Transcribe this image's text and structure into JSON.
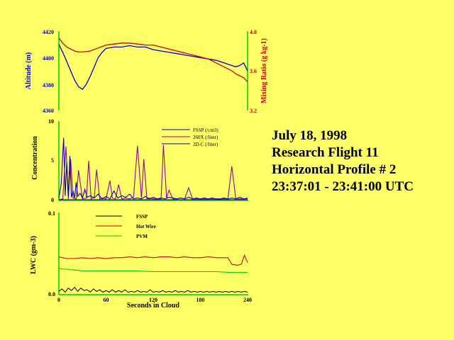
{
  "info": {
    "date": "July 18, 1998",
    "flight": "Research Flight 11",
    "profile": "Horizontal Profile # 2",
    "time": "23:37:01 - 23:41:00 UTC"
  },
  "colors": {
    "background": "#ffff66",
    "blue": "#0000cc",
    "red": "#cc0000",
    "purple": "#990099",
    "green": "#00cc00",
    "black": "#000000"
  },
  "chart_data": [
    {
      "type": "line",
      "ylabel": "Altitude (m)",
      "y2label": "Mixing Ratio (g kg-1)",
      "xlim": [
        0,
        240
      ],
      "ylim": [
        4360,
        4420
      ],
      "y2lim": [
        3.2,
        4.0
      ],
      "yticks": [
        "4420",
        "4400",
        "4380",
        "4360"
      ],
      "y2ticks": [
        "4.0",
        "3.6",
        "3.2"
      ],
      "series": [
        {
          "axis": "left",
          "color": "#0000cc",
          "x": [
            0,
            5,
            10,
            15,
            20,
            25,
            30,
            35,
            40,
            45,
            50,
            55,
            60,
            70,
            80,
            90,
            100,
            110,
            120,
            130,
            140,
            150,
            160,
            170,
            180,
            190,
            200,
            210,
            220,
            225,
            230,
            235,
            240
          ],
          "y": [
            4410,
            4404,
            4397,
            4390,
            4383,
            4378,
            4376,
            4380,
            4386,
            4393,
            4400,
            4404,
            4407,
            4408,
            4408,
            4409,
            4408,
            4408,
            4406,
            4405,
            4404,
            4403,
            4402,
            4401,
            4400,
            4399,
            4398,
            4396,
            4394,
            4393,
            4394,
            4396,
            4390
          ]
        },
        {
          "axis": "right",
          "color": "#cc0000",
          "x": [
            0,
            5,
            10,
            15,
            20,
            25,
            30,
            40,
            50,
            60,
            70,
            80,
            90,
            100,
            110,
            120,
            130,
            140,
            150,
            160,
            170,
            180,
            190,
            200,
            210,
            220,
            225,
            230,
            235,
            240
          ],
          "y": [
            3.93,
            3.88,
            3.84,
            3.82,
            3.8,
            3.79,
            3.79,
            3.8,
            3.83,
            3.86,
            3.87,
            3.88,
            3.88,
            3.87,
            3.86,
            3.86,
            3.84,
            3.82,
            3.8,
            3.78,
            3.76,
            3.74,
            3.72,
            3.68,
            3.64,
            3.6,
            3.57,
            3.55,
            3.53,
            3.49
          ]
        }
      ]
    },
    {
      "type": "line",
      "ylabel": "Concentration",
      "xlim": [
        0,
        240
      ],
      "ylim": [
        0,
        10
      ],
      "yticks": [
        "10",
        "5",
        "0"
      ],
      "legend": [
        "FSSP (/cm3)",
        "260X (/liter)",
        "2D-C (/liter)"
      ],
      "series": [
        {
          "name": "FSSP (/cm3)",
          "color": "#0000cc",
          "x": [
            0,
            3,
            6,
            8,
            10,
            12,
            14,
            16,
            18,
            20,
            22,
            24,
            27,
            30,
            33,
            36,
            40,
            45,
            50,
            55,
            60,
            65,
            70,
            75,
            80,
            85,
            90,
            95,
            100,
            105,
            110,
            115,
            120,
            125,
            130,
            135,
            140,
            145,
            150,
            155,
            160,
            165,
            170,
            175,
            180,
            185,
            190,
            195,
            200,
            205,
            210,
            215,
            220,
            225,
            230,
            235,
            240
          ],
          "y": [
            0.3,
            2.1,
            7.9,
            0.6,
            4.8,
            0.5,
            5.6,
            0.4,
            1.2,
            0.3,
            2.3,
            0.5,
            0.9,
            0.3,
            1.4,
            0.4,
            0.6,
            0.3,
            0.8,
            0.2,
            0.5,
            0.2,
            1.2,
            0.3,
            0.6,
            0.4,
            0.8,
            0.2,
            0.3,
            0.2,
            0.5,
            0.2,
            0.4,
            0.2,
            0.3,
            0.2,
            0.4,
            0.3,
            0.2,
            0.3,
            0.2,
            0.4,
            0.2,
            0.3,
            0.2,
            0.3,
            0.2,
            0.3,
            0.2,
            0.2,
            0.3,
            0.2,
            0.3,
            0.2,
            0.4,
            0.2,
            0.3
          ]
        },
        {
          "name": "260X (/liter)",
          "color": "#990099",
          "x": [
            0,
            5,
            9,
            12,
            15,
            18,
            22,
            25,
            30,
            35,
            38,
            41,
            45,
            48,
            52,
            55,
            60,
            65,
            68,
            72,
            76,
            80,
            85,
            90,
            95,
            100,
            105,
            108,
            112,
            115,
            120,
            125,
            130,
            133,
            137,
            140,
            145,
            150,
            155,
            160,
            165,
            170,
            175,
            180,
            185,
            190,
            195,
            200,
            205,
            210,
            215,
            220,
            225,
            230,
            235,
            240
          ],
          "y": [
            0.1,
            0.2,
            6.8,
            0.2,
            5.2,
            0.3,
            0.2,
            3.8,
            0.2,
            0.3,
            5.0,
            0.2,
            0.4,
            3.9,
            0.2,
            0.3,
            0.2,
            2.5,
            0.3,
            0.2,
            2.0,
            0.2,
            0.3,
            0.2,
            0.4,
            6.9,
            0.3,
            5.2,
            0.2,
            0.3,
            0.2,
            0.2,
            0.2,
            7.0,
            0.3,
            1.3,
            0.2,
            0.2,
            0.3,
            0.2,
            1.6,
            0.2,
            0.2,
            0.2,
            0.2,
            0.2,
            0.2,
            0.2,
            0.2,
            0.2,
            0.2,
            4.3,
            0.2,
            0.2,
            0.2,
            0.2
          ]
        },
        {
          "name": "2D-C (/liter)",
          "color": "#0000cc",
          "x": [
            0,
            20,
            40,
            60,
            80,
            100,
            120,
            140,
            160,
            180,
            200,
            220,
            240
          ],
          "y": [
            0.1,
            0.1,
            0.1,
            0.1,
            0.1,
            0.1,
            0.1,
            0.1,
            0.1,
            0.1,
            0.1,
            0.1,
            0.1
          ]
        }
      ]
    },
    {
      "type": "line",
      "ylabel": "LWC (gm-3)",
      "xlabel": "Seconds in Cloud",
      "xlim": [
        0,
        240
      ],
      "ylim": [
        0,
        0.1
      ],
      "yticks": [
        "0.1",
        "0.0"
      ],
      "xticks": [
        0,
        60,
        120,
        180,
        240
      ],
      "legend": [
        "FSSP",
        "Hot Wire",
        "PVM"
      ],
      "series": [
        {
          "name": "FSSP",
          "color": "#000000",
          "x": [
            0,
            4,
            8,
            12,
            16,
            20,
            24,
            28,
            32,
            36,
            40,
            44,
            48,
            52,
            56,
            60,
            64,
            68,
            72,
            76,
            80,
            84,
            88,
            92,
            96,
            100,
            104,
            108,
            112,
            116,
            120,
            124,
            128,
            132,
            136,
            140,
            144,
            148,
            152,
            156,
            160,
            164,
            168,
            172,
            176,
            180,
            184,
            188,
            192,
            196,
            200,
            204,
            208,
            212,
            216,
            220,
            224,
            228,
            232,
            236,
            240
          ],
          "y": [
            0.004,
            0.007,
            0.003,
            0.008,
            0.005,
            0.009,
            0.004,
            0.008,
            0.005,
            0.006,
            0.003,
            0.007,
            0.004,
            0.006,
            0.003,
            0.005,
            0.003,
            0.006,
            0.003,
            0.005,
            0.003,
            0.006,
            0.003,
            0.004,
            0.003,
            0.005,
            0.003,
            0.004,
            0.003,
            0.006,
            0.003,
            0.004,
            0.003,
            0.005,
            0.003,
            0.004,
            0.003,
            0.005,
            0.003,
            0.004,
            0.003,
            0.005,
            0.003,
            0.004,
            0.003,
            0.004,
            0.003,
            0.004,
            0.003,
            0.004,
            0.003,
            0.004,
            0.003,
            0.004,
            0.003,
            0.004,
            0.003,
            0.004,
            0.003,
            0.004,
            0.003
          ]
        },
        {
          "name": "Hot Wire",
          "color": "#cc0000",
          "x": [
            0,
            5,
            10,
            20,
            30,
            40,
            50,
            60,
            70,
            80,
            90,
            100,
            110,
            120,
            130,
            140,
            150,
            160,
            170,
            180,
            190,
            200,
            210,
            215,
            220,
            225,
            228,
            232,
            236,
            240
          ],
          "y": [
            0.046,
            0.045,
            0.044,
            0.044,
            0.045,
            0.044,
            0.045,
            0.044,
            0.045,
            0.045,
            0.046,
            0.045,
            0.046,
            0.045,
            0.046,
            0.046,
            0.045,
            0.046,
            0.045,
            0.045,
            0.046,
            0.045,
            0.045,
            0.045,
            0.037,
            0.036,
            0.036,
            0.037,
            0.048,
            0.039
          ]
        },
        {
          "name": "PVM",
          "color": "#00cc00",
          "x": [
            0,
            5,
            10,
            20,
            30,
            40,
            50,
            60,
            80,
            100,
            120,
            140,
            160,
            180,
            200,
            220,
            240
          ],
          "y": [
            0.032,
            0.031,
            0.031,
            0.03,
            0.029,
            0.029,
            0.029,
            0.029,
            0.029,
            0.029,
            0.028,
            0.028,
            0.028,
            0.028,
            0.028,
            0.027,
            0.027
          ]
        }
      ]
    }
  ]
}
